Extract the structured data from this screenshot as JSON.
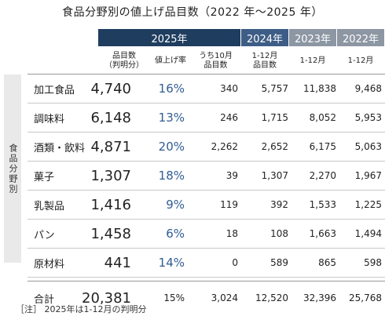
{
  "title": "食品分野別の値上げ品目数（2022 年～2025 年）",
  "headers": {
    "y2025": "2025年",
    "y2024": "2024年",
    "y2023": "2023年",
    "y2022": "2022年"
  },
  "subheaders": {
    "count": "品目数\n（判明分）",
    "rate": "値上げ率",
    "oct": "うち10月\n品目数",
    "y2024": "1-12月\n品目数",
    "y2023": "1-12月",
    "y2022": "1-12月"
  },
  "sidebar_label": "食品分野別",
  "colors": {
    "header_2025": "#1f3e5f",
    "header_2024": "#3e5d86",
    "header_past": "#8d96a3",
    "rate_text": "#2f5d92"
  },
  "chart_data": {
    "type": "table",
    "title": "食品分野別の値上げ品目数（2022 年～2025 年）",
    "columns": [
      "品目数（判明分）",
      "値上げ率",
      "うち10月品目数",
      "2024年 1-12月品目数",
      "2023年 1-12月",
      "2022年 1-12月"
    ],
    "rows": [
      {
        "name": "加工食品",
        "count": "4,740",
        "rate": "16%",
        "oct": "340",
        "y2024": "5,757",
        "y2023": "11,838",
        "y2022": "9,468"
      },
      {
        "name": "調味料",
        "count": "6,148",
        "rate": "13%",
        "oct": "246",
        "y2024": "1,715",
        "y2023": "8,052",
        "y2022": "5,953"
      },
      {
        "name": "酒類・飲料",
        "count": "4,871",
        "rate": "20%",
        "oct": "2,262",
        "y2024": "2,652",
        "y2023": "6,175",
        "y2022": "5,063"
      },
      {
        "name": "菓子",
        "count": "1,307",
        "rate": "18%",
        "oct": "39",
        "y2024": "1,307",
        "y2023": "2,270",
        "y2022": "1,967"
      },
      {
        "name": "乳製品",
        "count": "1,416",
        "rate": "9%",
        "oct": "119",
        "y2024": "392",
        "y2023": "1,533",
        "y2022": "1,225"
      },
      {
        "name": "パン",
        "count": "1,458",
        "rate": "6%",
        "oct": "18",
        "y2024": "108",
        "y2023": "1,663",
        "y2022": "1,494"
      },
      {
        "name": "原材料",
        "count": "441",
        "rate": "14%",
        "oct": "0",
        "y2024": "589",
        "y2023": "865",
        "y2022": "598"
      },
      {
        "name": "合計",
        "count": "20,381",
        "rate": "15%",
        "oct": "3,024",
        "y2024": "12,520",
        "y2023": "32,396",
        "y2022": "25,768"
      }
    ]
  },
  "note": "［注］ 2025年は1-12月の判明分"
}
